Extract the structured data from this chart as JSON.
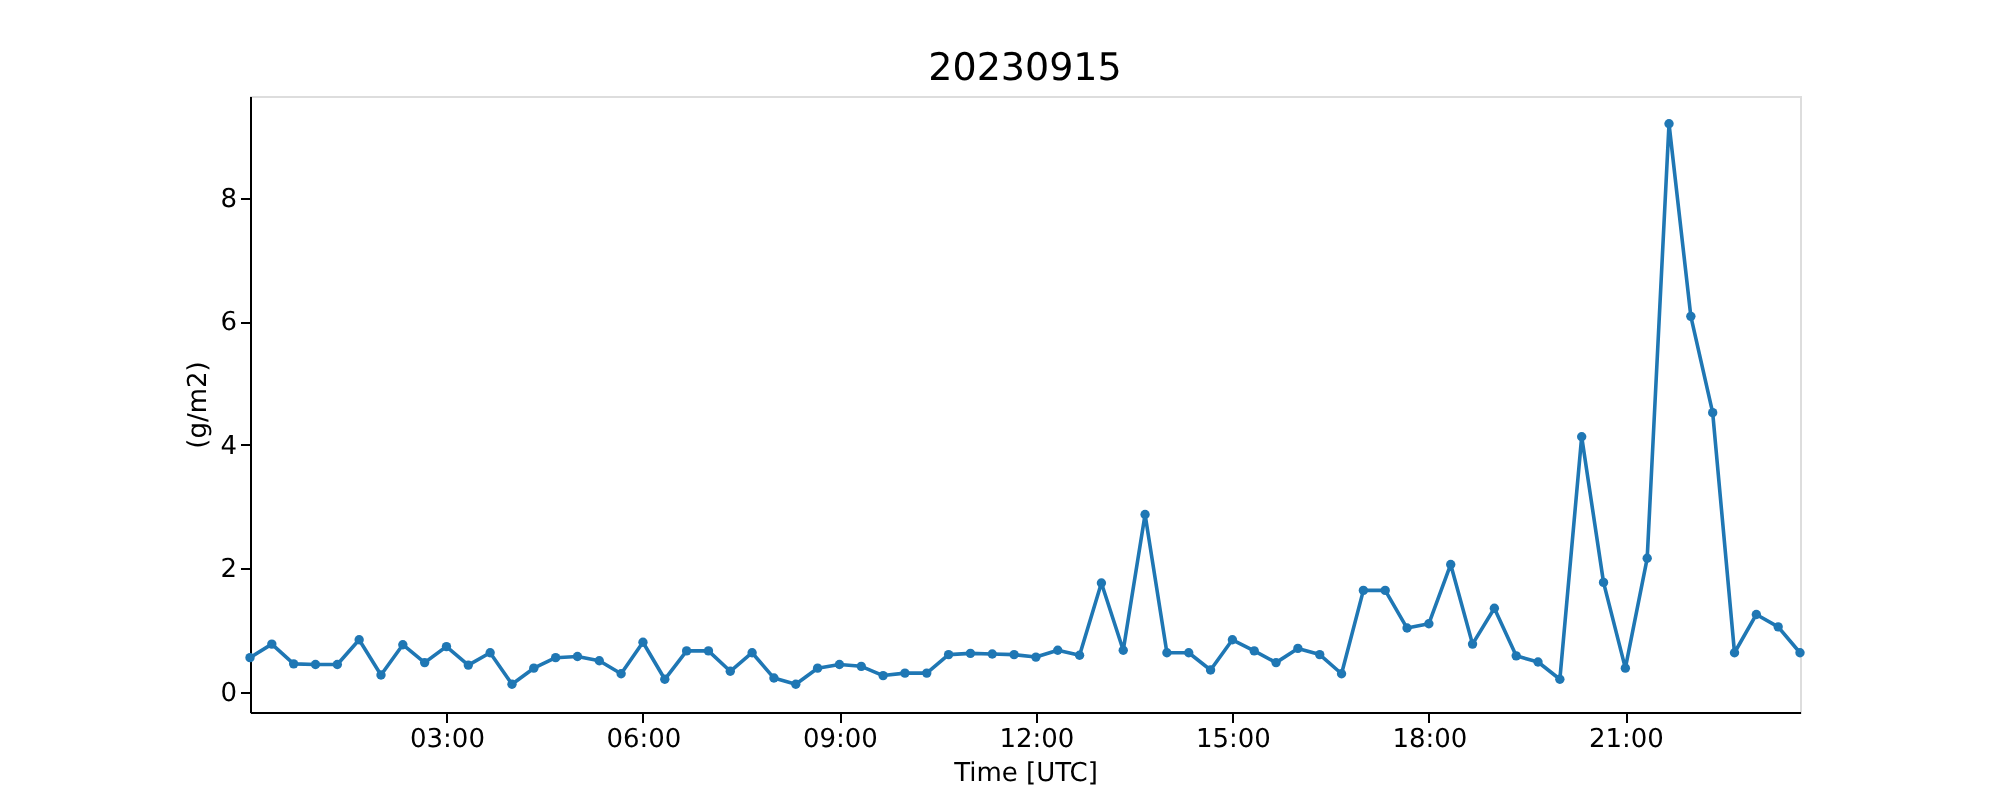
{
  "chart_data": {
    "type": "line",
    "title": "20230915",
    "xlabel": "Time [UTC]",
    "ylabel": "(g/m2)",
    "x": [
      "2023-09-15T00:00",
      "2023-09-15T00:20",
      "2023-09-15T00:40",
      "2023-09-15T01:00",
      "2023-09-15T01:20",
      "2023-09-15T01:40",
      "2023-09-15T02:00",
      "2023-09-15T02:20",
      "2023-09-15T02:40",
      "2023-09-15T03:00",
      "2023-09-15T03:20",
      "2023-09-15T03:40",
      "2023-09-15T04:00",
      "2023-09-15T04:20",
      "2023-09-15T04:40",
      "2023-09-15T05:00",
      "2023-09-15T05:20",
      "2023-09-15T05:40",
      "2023-09-15T06:00",
      "2023-09-15T06:20",
      "2023-09-15T06:40",
      "2023-09-15T07:00",
      "2023-09-15T07:20",
      "2023-09-15T07:40",
      "2023-09-15T08:00",
      "2023-09-15T08:20",
      "2023-09-15T08:40",
      "2023-09-15T09:00",
      "2023-09-15T09:20",
      "2023-09-15T09:40",
      "2023-09-15T10:00",
      "2023-09-15T10:20",
      "2023-09-15T10:40",
      "2023-09-15T11:00",
      "2023-09-15T11:20",
      "2023-09-15T11:40",
      "2023-09-15T12:00",
      "2023-09-15T12:20",
      "2023-09-15T12:40",
      "2023-09-15T13:00",
      "2023-09-15T13:20",
      "2023-09-15T13:40",
      "2023-09-15T14:00",
      "2023-09-15T14:20",
      "2023-09-15T14:40",
      "2023-09-15T15:00",
      "2023-09-15T15:20",
      "2023-09-15T15:40",
      "2023-09-15T16:00",
      "2023-09-15T16:20",
      "2023-09-15T16:40",
      "2023-09-15T17:00",
      "2023-09-15T17:20",
      "2023-09-15T17:40",
      "2023-09-15T18:00",
      "2023-09-15T18:20",
      "2023-09-15T18:40",
      "2023-09-15T19:00",
      "2023-09-15T19:20",
      "2023-09-15T19:40",
      "2023-09-15T20:00",
      "2023-09-15T20:20",
      "2023-09-15T20:40",
      "2023-09-15T21:00",
      "2023-09-15T21:20",
      "2023-09-15T21:40",
      "2023-09-15T22:00",
      "2023-09-15T22:20",
      "2023-09-15T22:40",
      "2023-09-15T23:00",
      "2023-09-15T23:20",
      "2023-09-15T23:40"
    ],
    "series": [
      {
        "color": "#1f77b4",
        "values": [
          0.55,
          0.77,
          0.45,
          0.44,
          0.44,
          0.84,
          0.27,
          0.76,
          0.47,
          0.73,
          0.43,
          0.63,
          0.12,
          0.38,
          0.55,
          0.57,
          0.5,
          0.29,
          0.8,
          0.2,
          0.66,
          0.66,
          0.33,
          0.63,
          0.22,
          0.12,
          0.38,
          0.44,
          0.41,
          0.26,
          0.3,
          0.3,
          0.6,
          0.62,
          0.61,
          0.6,
          0.56,
          0.67,
          0.59,
          1.76,
          0.67,
          2.87,
          0.63,
          0.63,
          0.35,
          0.84,
          0.66,
          0.47,
          0.7,
          0.6,
          0.29,
          1.64,
          1.64,
          1.03,
          1.1,
          2.06,
          0.77,
          1.35,
          0.58,
          0.48,
          0.2,
          4.13,
          1.77,
          0.38,
          2.16,
          9.2,
          6.08,
          4.52,
          0.63,
          1.25,
          1.05,
          0.63
        ]
      }
    ],
    "xlim": [
      "2023-09-15T00:00",
      "2023-09-15T23:40"
    ],
    "xticks": [
      {
        "value": "2023-09-15T03:00",
        "label": "03:00"
      },
      {
        "value": "2023-09-15T06:00",
        "label": "06:00"
      },
      {
        "value": "2023-09-15T09:00",
        "label": "09:00"
      },
      {
        "value": "2023-09-15T12:00",
        "label": "12:00"
      },
      {
        "value": "2023-09-15T15:00",
        "label": "15:00"
      },
      {
        "value": "2023-09-15T18:00",
        "label": "18:00"
      },
      {
        "value": "2023-09-15T21:00",
        "label": "21:00"
      }
    ],
    "ylim": [
      -0.33,
      9.65
    ],
    "yticks": [
      0,
      2,
      4,
      6,
      8
    ],
    "grid": false,
    "marker": "circle",
    "line_style": "solid"
  }
}
